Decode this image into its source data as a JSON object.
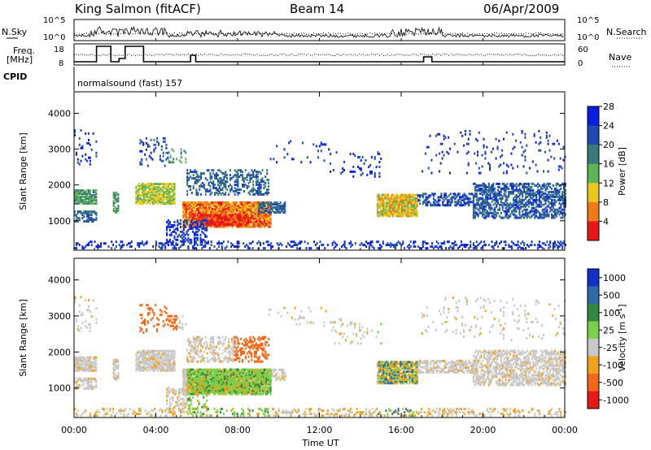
{
  "header": {
    "station": "King Salmon (fitACF)",
    "beam": "Beam 14",
    "date": "06/Apr/2009"
  },
  "noise_panel": {
    "left_label": "N.Sky",
    "right_label": "N.Search",
    "left_ticks": [
      "10^5",
      "10^0"
    ],
    "right_ticks": [
      "10^5",
      "10^0"
    ]
  },
  "freq_panel": {
    "left_label_1": "Freq.",
    "left_label_2": "[MHz]",
    "left_ticks": [
      "18",
      "8"
    ],
    "right_label": "Nave",
    "right_ticks": [
      "60",
      "0"
    ]
  },
  "cpid": {
    "label": "CPID",
    "text": "normalsound (fast) 157"
  },
  "chart_data": [
    {
      "type": "heatmap",
      "name": "power",
      "ylabel": "Slant Range [km]",
      "ylim": [
        180,
        4600
      ],
      "yticks": [
        "1000",
        "2000",
        "3000",
        "4000"
      ],
      "xlabel": "",
      "colorbar_label": "Power [dB]",
      "colorbar_ticks": [
        "4",
        "8",
        "12",
        "16",
        "20",
        "24",
        "28"
      ],
      "colorbar_colors": [
        "#0a1ee0",
        "#1e4ab0",
        "#3a7a7a",
        "#5cb455",
        "#eac81c",
        "#f07a14",
        "#e81818"
      ]
    },
    {
      "type": "heatmap",
      "name": "velocity",
      "ylabel": "Slant Range [km]",
      "ylim": [
        180,
        4600
      ],
      "yticks": [
        "1000",
        "2000",
        "3000",
        "4000"
      ],
      "xlabel": "Time UT",
      "xticks": [
        "00:00",
        "04:00",
        "08:00",
        "12:00",
        "16:00",
        "20:00",
        "00:00"
      ],
      "colorbar_label": "Velocity [m s",
      "colorbar_label_sup": "-1",
      "colorbar_label_end": "]",
      "colorbar_ticks": [
        "1000",
        "500",
        "100",
        "25",
        "-25",
        "-100",
        "-500",
        "-1000"
      ],
      "colorbar_colors": [
        "#1030c8",
        "#2e6aa8",
        "#2f8a3f",
        "#7ad04a",
        "#c8c8c8",
        "#f2a11a",
        "#f06818",
        "#e81818"
      ]
    }
  ]
}
